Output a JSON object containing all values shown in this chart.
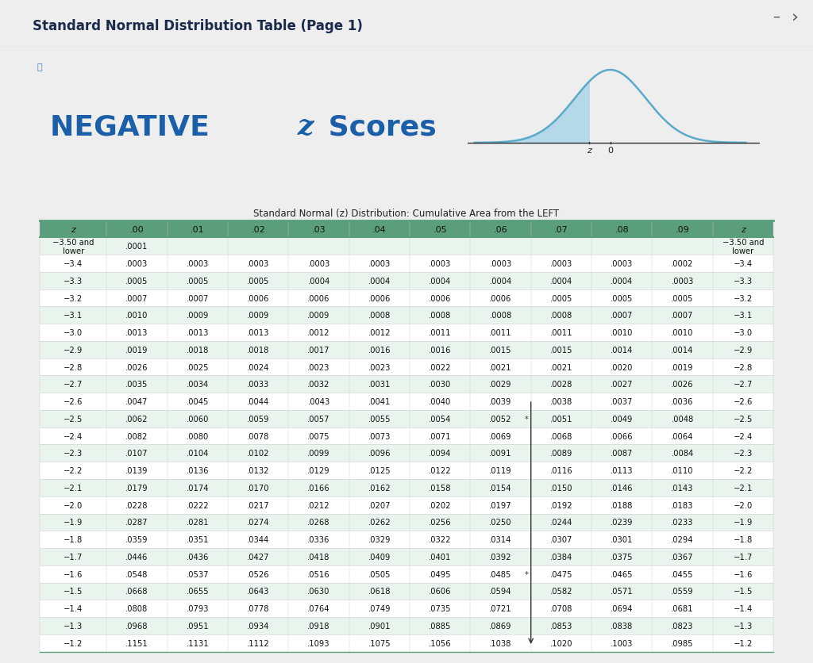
{
  "page_title": "Standard Normal Distribution Table (Page 1)",
  "main_title_neg": "NEGATIVE ",
  "main_title_z": "z",
  "main_title_rest": " Scores",
  "subtitle": "Standard Normal (z) Distribution: Cumulative Area from the LEFT",
  "title_color": "#1a5fa8",
  "col_headers": [
    "z",
    ".00",
    ".01",
    ".02",
    ".03",
    ".04",
    ".05",
    ".06",
    ".07",
    ".08",
    ".09",
    "z"
  ],
  "rows": [
    [
      "-3.50 and\nlower",
      ".0001",
      "",
      "",
      "",
      "",
      "",
      "",
      "",
      "",
      "",
      "-3.50 and\nlower"
    ],
    [
      "-3.4",
      ".0003",
      ".0003",
      ".0003",
      ".0003",
      ".0003",
      ".0003",
      ".0003",
      ".0003",
      ".0003",
      ".0002",
      "-3.4"
    ],
    [
      "-3.3",
      ".0005",
      ".0005",
      ".0005",
      ".0004",
      ".0004",
      ".0004",
      ".0004",
      ".0004",
      ".0004",
      ".0003",
      "-3.3"
    ],
    [
      "-3.2",
      ".0007",
      ".0007",
      ".0006",
      ".0006",
      ".0006",
      ".0006",
      ".0006",
      ".0005",
      ".0005",
      ".0005",
      "-3.2"
    ],
    [
      "-3.1",
      ".0010",
      ".0009",
      ".0009",
      ".0009",
      ".0008",
      ".0008",
      ".0008",
      ".0008",
      ".0007",
      ".0007",
      "-3.1"
    ],
    [
      "-3.0",
      ".0013",
      ".0013",
      ".0013",
      ".0012",
      ".0012",
      ".0011",
      ".0011",
      ".0011",
      ".0010",
      ".0010",
      "-3.0"
    ],
    [
      "-2.9",
      ".0019",
      ".0018",
      ".0018",
      ".0017",
      ".0016",
      ".0016",
      ".0015",
      ".0015",
      ".0014",
      ".0014",
      "-2.9"
    ],
    [
      "-2.8",
      ".0026",
      ".0025",
      ".0024",
      ".0023",
      ".0023",
      ".0022",
      ".0021",
      ".0021",
      ".0020",
      ".0019",
      "-2.8"
    ],
    [
      "-2.7",
      ".0035",
      ".0034",
      ".0033",
      ".0032",
      ".0031",
      ".0030",
      ".0029",
      ".0028",
      ".0027",
      ".0026",
      "-2.7"
    ],
    [
      "-2.6",
      ".0047",
      ".0045",
      ".0044",
      ".0043",
      ".0041",
      ".0040",
      ".0039",
      ".0038",
      ".0037",
      ".0036",
      "-2.6"
    ],
    [
      "-2.5",
      ".0062",
      ".0060",
      ".0059",
      ".0057",
      ".0055",
      ".0054",
      ".0052",
      ".0051",
      ".0049",
      ".0048",
      "-2.5"
    ],
    [
      "-2.4",
      ".0082",
      ".0080",
      ".0078",
      ".0075",
      ".0073",
      ".0071",
      ".0069",
      ".0068",
      ".0066",
      ".0064",
      "-2.4"
    ],
    [
      "-2.3",
      ".0107",
      ".0104",
      ".0102",
      ".0099",
      ".0096",
      ".0094",
      ".0091",
      ".0089",
      ".0087",
      ".0084",
      "-2.3"
    ],
    [
      "-2.2",
      ".0139",
      ".0136",
      ".0132",
      ".0129",
      ".0125",
      ".0122",
      ".0119",
      ".0116",
      ".0113",
      ".0110",
      "-2.2"
    ],
    [
      "-2.1",
      ".0179",
      ".0174",
      ".0170",
      ".0166",
      ".0162",
      ".0158",
      ".0154",
      ".0150",
      ".0146",
      ".0143",
      "-2.1"
    ],
    [
      "-2.0",
      ".0228",
      ".0222",
      ".0217",
      ".0212",
      ".0207",
      ".0202",
      ".0197",
      ".0192",
      ".0188",
      ".0183",
      "-2.0"
    ],
    [
      "-1.9",
      ".0287",
      ".0281",
      ".0274",
      ".0268",
      ".0262",
      ".0256",
      ".0250",
      ".0244",
      ".0239",
      ".0233",
      "-1.9"
    ],
    [
      "-1.8",
      ".0359",
      ".0351",
      ".0344",
      ".0336",
      ".0329",
      ".0322",
      ".0314",
      ".0307",
      ".0301",
      ".0294",
      "-1.8"
    ],
    [
      "-1.7",
      ".0446",
      ".0436",
      ".0427",
      ".0418",
      ".0409",
      ".0401",
      ".0392",
      ".0384",
      ".0375",
      ".0367",
      "-1.7"
    ],
    [
      "-1.6",
      ".0548",
      ".0537",
      ".0526",
      ".0516",
      ".0505",
      ".0495",
      ".0485",
      ".0475",
      ".0465",
      ".0455",
      "-1.6"
    ],
    [
      "-1.5",
      ".0668",
      ".0655",
      ".0643",
      ".0630",
      ".0618",
      ".0606",
      ".0594",
      ".0582",
      ".0571",
      ".0559",
      "-1.5"
    ],
    [
      "-1.4",
      ".0808",
      ".0793",
      ".0778",
      ".0764",
      ".0749",
      ".0735",
      ".0721",
      ".0708",
      ".0694",
      ".0681",
      "-1.4"
    ],
    [
      "-1.3",
      ".0968",
      ".0951",
      ".0934",
      ".0918",
      ".0901",
      ".0885",
      ".0869",
      ".0853",
      ".0838",
      ".0823",
      "-1.3"
    ],
    [
      "-1.2",
      ".1151",
      ".1131",
      ".1112",
      ".1093",
      ".1075",
      ".1056",
      ".1038",
      ".1020",
      ".1003",
      ".0985",
      "-1.2"
    ]
  ],
  "header_bg": "#5b9e7b",
  "row_bg_even": "#eaf4ee",
  "row_bg_odd": "#ffffff",
  "table_border_color": "#5b9e7b",
  "page_bg": "#eeeeee",
  "content_bg": "#ffffff"
}
